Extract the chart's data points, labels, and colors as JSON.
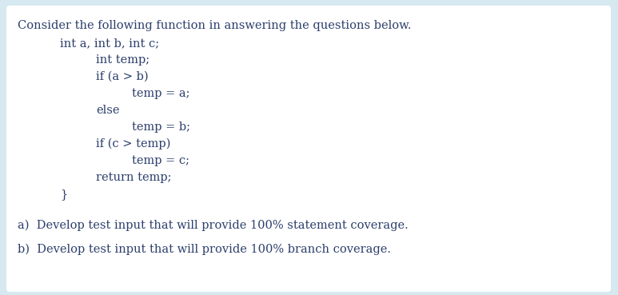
{
  "bg_color": "#d6e8f0",
  "box_color": "#ffffff",
  "text_color": "#2c3e6b",
  "title_line": "Consider the following function in answering the questions below.",
  "code_lines": [
    {
      "text": "int a, int b, int c;",
      "indent": 1
    },
    {
      "text": "int temp;",
      "indent": 2
    },
    {
      "text": "if (a > b)",
      "indent": 2
    },
    {
      "text": "temp = a;",
      "indent": 3
    },
    {
      "text": "else",
      "indent": 2
    },
    {
      "text": "temp = b;",
      "indent": 3
    },
    {
      "text": "if (c > temp)",
      "indent": 2
    },
    {
      "text": "temp = c;",
      "indent": 3
    },
    {
      "text": "return temp;",
      "indent": 2
    },
    {
      "text": "}",
      "indent": 1
    }
  ],
  "question_a": "a)  Develop test input that will provide 100% statement coverage.",
  "question_b": "b)  Develop test input that will provide 100% branch coverage.",
  "font_size": 10.5,
  "font_family": "DejaVu Serif"
}
